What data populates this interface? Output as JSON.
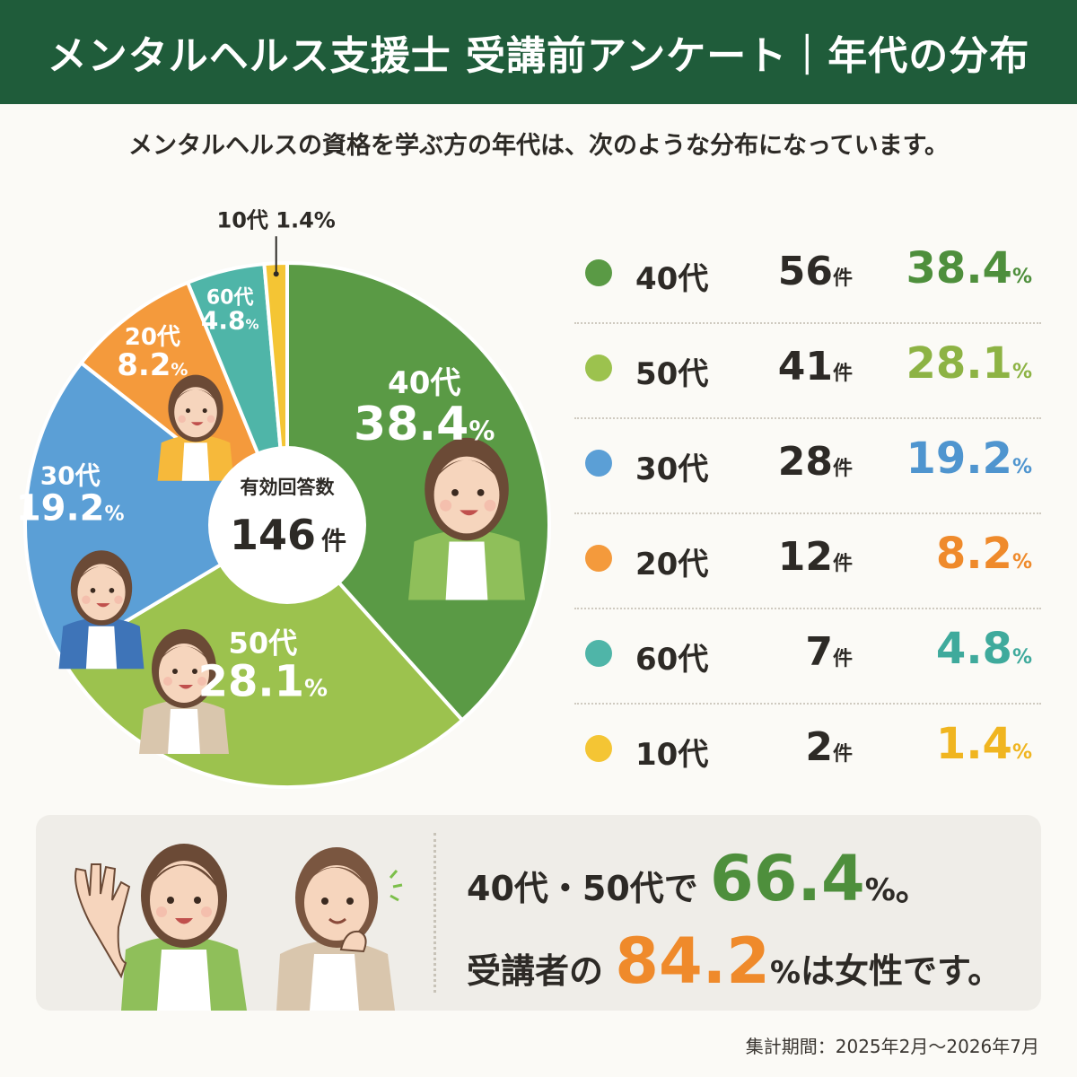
{
  "header": {
    "title": "メンタルヘルス支援士 受講前アンケート｜年代の分布"
  },
  "subtitle": "メンタルヘルスの資格を学ぶ方の年代は、次のような分布になっています。",
  "center": {
    "label": "有効回答数",
    "total": "146",
    "unit": "件"
  },
  "percent_unit": "%",
  "chart_data": {
    "type": "pie",
    "total_respondents": 146,
    "slices": [
      {
        "label": "40代",
        "count": 56,
        "count_text": "56",
        "percent": 38.4,
        "percent_text": "38.4",
        "color": "#5a9a45",
        "pct_color": "#4e8f3c"
      },
      {
        "label": "50代",
        "count": 41,
        "count_text": "41",
        "percent": 28.1,
        "percent_text": "28.1",
        "color": "#9cc24e",
        "pct_color": "#8db344"
      },
      {
        "label": "30代",
        "count": 28,
        "count_text": "28",
        "percent": 19.2,
        "percent_text": "19.2",
        "color": "#5b9fd6",
        "pct_color": "#4f95cf"
      },
      {
        "label": "20代",
        "count": 12,
        "count_text": "12",
        "percent": 8.2,
        "percent_text": "8.2",
        "color": "#f49a3c",
        "pct_color": "#ef8a2b"
      },
      {
        "label": "60代",
        "count": 7,
        "count_text": "7",
        "percent": 4.8,
        "percent_text": "4.8",
        "color": "#4fb5a8",
        "pct_color": "#3faa9c"
      },
      {
        "label": "10代",
        "count": 2,
        "count_text": "2",
        "percent": 1.4,
        "percent_text": "1.4",
        "color": "#f4c534",
        "pct_color": "#f0b520"
      }
    ],
    "callout_label": "10代 1.4%",
    "count_unit": "件"
  },
  "summary": {
    "line1_prefix": "40代・50代で",
    "line1_value": "66.4",
    "line1_suffix": "。",
    "line2_prefix": "受講者の",
    "line2_value": "84.2",
    "line2_suffix": "は女性です。"
  },
  "footnote": "集計期間：2025年2月〜2026年7月"
}
